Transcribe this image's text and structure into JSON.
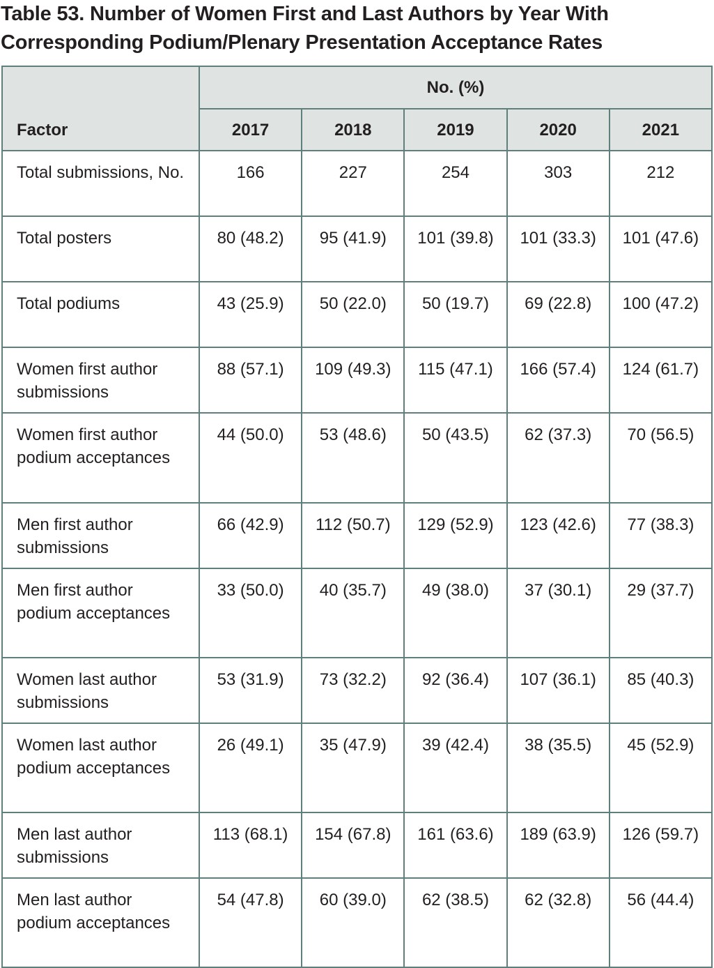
{
  "header": {
    "title": "Table 53. Number of Women First and Last Authors by Year With Corresponding Podium/Plenary Presentation Acceptance Rates"
  },
  "table": {
    "group_header": "No. (%)",
    "columns": [
      "Factor",
      "2017",
      "2018",
      "2019",
      "2020",
      "2021"
    ],
    "rows": [
      [
        "Total submissions, No.",
        "166",
        "227",
        "254",
        "303",
        "212"
      ],
      [
        "Total posters",
        "80 (48.2)",
        "95 (41.9)",
        "101 (39.8)",
        "101 (33.3)",
        "101 (47.6)"
      ],
      [
        "Total podiums",
        "43 (25.9)",
        "50 (22.0)",
        "50 (19.7)",
        "69 (22.8)",
        "100 (47.2)"
      ],
      [
        "Women first author submissions",
        "88 (57.1)",
        "109 (49.3)",
        "115 (47.1)",
        "166 (57.4)",
        "124 (61.7)"
      ],
      [
        "Women first author podium acceptances",
        "44 (50.0)",
        "53 (48.6)",
        "50 (43.5)",
        "62 (37.3)",
        "70 (56.5)"
      ],
      [
        "Men first author submissions",
        "66 (42.9)",
        "112 (50.7)",
        "129 (52.9)",
        "123 (42.6)",
        "77 (38.3)"
      ],
      [
        "Men first author podium acceptances",
        "33 (50.0)",
        "40 (35.7)",
        "49 (38.0)",
        "37 (30.1)",
        "29 (37.7)"
      ],
      [
        "Women last author submissions",
        "53 (31.9)",
        "73 (32.2)",
        "92 (36.4)",
        "107 (36.1)",
        "85 (40.3)"
      ],
      [
        "Women last author podium acceptances",
        "26 (49.1)",
        "35 (47.9)",
        "39 (42.4)",
        "38 (35.5)",
        "45 (52.9)"
      ],
      [
        "Men last author submissions",
        "113 (68.1)",
        "154 (67.8)",
        "161 (63.6)",
        "189 (63.9)",
        "126 (59.7)"
      ],
      [
        "Men last author podium acceptances",
        "54 (47.8)",
        "60 (39.0)",
        "62 (38.5)",
        "62 (32.8)",
        "56 (44.4)"
      ]
    ]
  }
}
